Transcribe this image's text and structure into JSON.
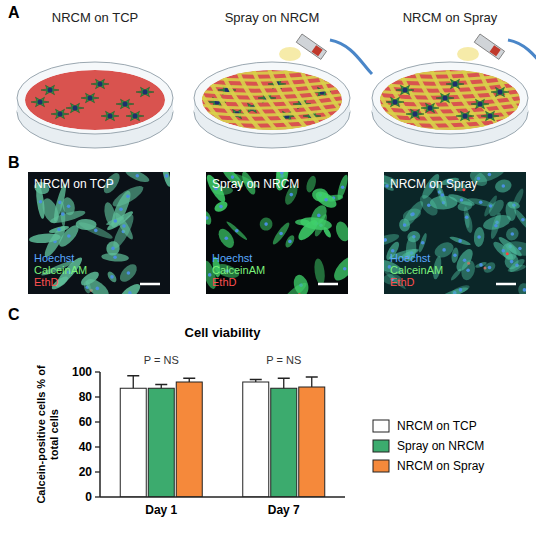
{
  "schematic": {
    "letter": "A",
    "panels": [
      "NRCM on TCP",
      "Spray on NRCM",
      "NRCM on Spray"
    ]
  },
  "micrographs": {
    "letter": "B",
    "panels": [
      {
        "title": "NRCM on TCP",
        "stains": [
          "Hoechst",
          "CalceinAM",
          "EthD"
        ]
      },
      {
        "title": "Spray on NRCM",
        "stains": [
          "Hoechst",
          "CalceinAM",
          "EthD"
        ]
      },
      {
        "title": "NRCM on Spray",
        "stains": [
          "Hoechst",
          "CalceinAM",
          "EthD"
        ]
      }
    ]
  },
  "chart_data": {
    "letter": "C",
    "type": "bar",
    "title": "Cell viability",
    "ylabel": "Calcein-positive cells % of total cells",
    "categories": [
      "Day 1",
      "Day 7"
    ],
    "series": [
      {
        "name": "NRCM on TCP",
        "color": "#ffffff",
        "values": [
          87,
          92
        ],
        "errors": [
          10,
          2
        ]
      },
      {
        "name": "Spray on NRCM",
        "color": "#3cab6e",
        "values": [
          87,
          87
        ],
        "errors": [
          3,
          8
        ]
      },
      {
        "name": "NRCM on Spray",
        "color": "#f5893b",
        "values": [
          92,
          88
        ],
        "errors": [
          3,
          8
        ]
      }
    ],
    "ylim": [
      0,
      100
    ],
    "yticks": [
      0,
      20,
      40,
      60,
      80,
      100
    ],
    "annotations": [
      {
        "text": "P = NS",
        "category": "Day 1"
      },
      {
        "text": "P = NS",
        "category": "Day 7"
      }
    ],
    "legend": "right",
    "grid": false
  }
}
